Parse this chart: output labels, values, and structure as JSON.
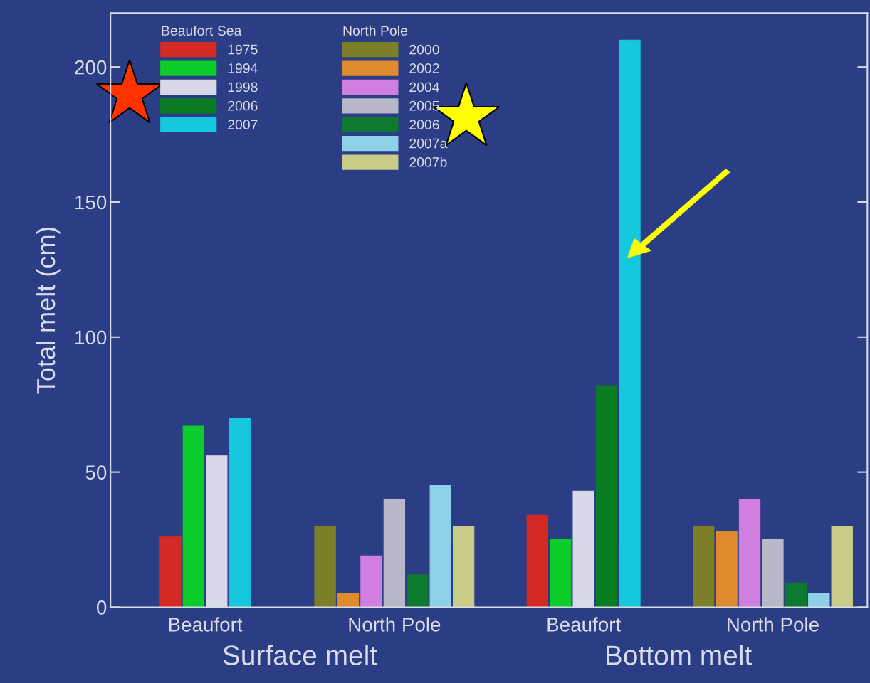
{
  "chart_data": {
    "type": "bar",
    "categories": [
      "Beaufort",
      "North Pole",
      "Beaufort",
      "North Pole"
    ],
    "ylabel": "Total melt (cm)",
    "legend_title": [
      "Beaufort Sea",
      "North Pole"
    ],
    "annotations": [
      "Surface melt",
      "Bottom melt"
    ],
    "ylim": [
      0,
      220
    ],
    "yticks": [
      0,
      50,
      100,
      150,
      200
    ],
    "legend": "top left",
    "grid": false,
    "series": [
      {
        "name": "1975",
        "color": "#d42a24",
        "values": [
          26,
          null,
          34,
          null
        ]
      },
      {
        "name": "1994",
        "color": "#0ccd2c",
        "values": [
          67,
          null,
          25,
          null
        ]
      },
      {
        "name": "1998",
        "color": "#d8d8e8",
        "values": [
          56,
          null,
          43,
          null
        ]
      },
      {
        "name": "2006",
        "color": "#0a7d22",
        "values": [
          null,
          null,
          82,
          null
        ]
      },
      {
        "name": "2007",
        "color": "#15c8de",
        "values": [
          70,
          null,
          210,
          null
        ]
      },
      {
        "name": "2000",
        "color": "#7a7f28",
        "values": [
          null,
          30,
          null,
          30
        ]
      },
      {
        "name": "2002",
        "color": "#e08a30",
        "values": [
          null,
          5,
          null,
          28
        ]
      },
      {
        "name": "2004",
        "color": "#d07ee0",
        "values": [
          null,
          19,
          null,
          40
        ]
      },
      {
        "name": "2005",
        "color": "#b8b8c8",
        "values": [
          null,
          40,
          null,
          25
        ]
      },
      {
        "name": "2006",
        "color": "#0d7a30",
        "values": [
          null,
          12,
          null,
          9
        ]
      },
      {
        "name": "2007a",
        "color": "#8ed0e8",
        "values": [
          null,
          45,
          null,
          5
        ]
      },
      {
        "name": "2007b",
        "color": "#c8cc88",
        "values": [
          null,
          30,
          null,
          30
        ]
      }
    ]
  }
}
